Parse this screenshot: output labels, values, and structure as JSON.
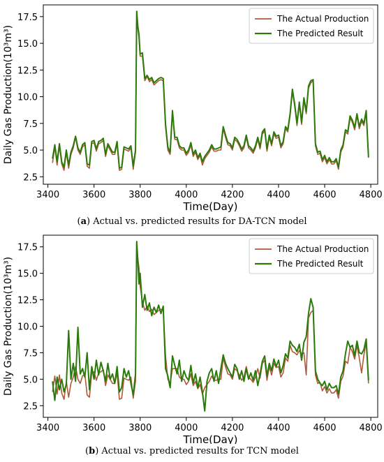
{
  "figure": {
    "panels": [
      {
        "caption_letter": "a",
        "caption_text": "Actual vs. predicted results for DA-TCN model"
      },
      {
        "caption_letter": "b",
        "caption_text": "Actual vs. predicted results for TCN model"
      }
    ]
  },
  "chart_data": [
    {
      "type": "line",
      "xlabel": "Time(Day)",
      "ylabel": "Daily Gas Production(10³m³)",
      "xlim": [
        3380,
        4830
      ],
      "ylim": [
        1.8,
        18.6
      ],
      "xticks": [
        3400,
        3600,
        3800,
        4000,
        4200,
        4400,
        4600,
        4800
      ],
      "yticks": [
        2.5,
        5.0,
        7.5,
        10.0,
        12.5,
        15.0,
        17.5
      ],
      "grid": false,
      "legend": "top-right",
      "x": [
        3420,
        3430,
        3440,
        3450,
        3460,
        3470,
        3480,
        3490,
        3500,
        3510,
        3520,
        3530,
        3540,
        3550,
        3560,
        3570,
        3580,
        3590,
        3600,
        3610,
        3620,
        3630,
        3640,
        3650,
        3660,
        3670,
        3680,
        3690,
        3700,
        3710,
        3720,
        3730,
        3740,
        3750,
        3760,
        3770,
        3780,
        3785,
        3790,
        3795,
        3800,
        3810,
        3820,
        3830,
        3840,
        3850,
        3860,
        3870,
        3880,
        3890,
        3900,
        3910,
        3920,
        3930,
        3940,
        3950,
        3960,
        3970,
        3980,
        3990,
        4000,
        4010,
        4020,
        4030,
        4040,
        4050,
        4060,
        4070,
        4080,
        4090,
        4100,
        4110,
        4120,
        4130,
        4140,
        4150,
        4160,
        4170,
        4180,
        4190,
        4200,
        4210,
        4220,
        4230,
        4240,
        4250,
        4260,
        4270,
        4280,
        4290,
        4300,
        4310,
        4320,
        4330,
        4340,
        4350,
        4360,
        4370,
        4380,
        4390,
        4400,
        4410,
        4420,
        4430,
        4440,
        4450,
        4460,
        4470,
        4480,
        4490,
        4500,
        4510,
        4520,
        4530,
        4540,
        4550,
        4560,
        4570,
        4580,
        4590,
        4600,
        4610,
        4620,
        4630,
        4640,
        4650,
        4660,
        4670,
        4680,
        4690,
        4700,
        4710,
        4720,
        4730,
        4740,
        4750,
        4760,
        4770,
        4780,
        4790
      ],
      "series": [
        {
          "name": "The Actual Production",
          "color": "#b0583a",
          "values": [
            3.8,
            5.3,
            3.6,
            5.4,
            3.7,
            3.1,
            4.8,
            3.3,
            4.6,
            5.2,
            6.2,
            5.0,
            4.6,
            5.3,
            5.5,
            3.5,
            3.3,
            5.6,
            5.7,
            4.9,
            5.6,
            5.7,
            5.9,
            4.4,
            5.4,
            5.0,
            4.6,
            4.6,
            5.6,
            3.1,
            3.2,
            5.1,
            5.0,
            4.9,
            5.2,
            3.2,
            4.8,
            18.0,
            16.4,
            15.5,
            13.8,
            13.8,
            11.5,
            11.9,
            11.4,
            11.6,
            11.1,
            11.3,
            11.5,
            11.6,
            11.5,
            7.2,
            5.0,
            4.6,
            8.5,
            6.0,
            6.0,
            5.2,
            5.0,
            5.0,
            4.5,
            4.8,
            5.5,
            4.4,
            4.8,
            4.1,
            4.5,
            3.6,
            4.2,
            4.5,
            4.8,
            5.3,
            4.9,
            4.9,
            5.0,
            5.0,
            7.0,
            6.2,
            5.5,
            5.4,
            5.0,
            6.0,
            5.8,
            5.4,
            4.9,
            5.2,
            6.2,
            5.2,
            5.0,
            4.7,
            5.2,
            6.0,
            5.1,
            6.5,
            6.8,
            4.9,
            6.2,
            5.4,
            6.5,
            6.1,
            6.2,
            5.2,
            5.6,
            7.0,
            6.7,
            8.2,
            10.5,
            9.1,
            7.3,
            9.3,
            7.4,
            9.7,
            8.4,
            10.8,
            11.3,
            11.5,
            5.4,
            4.6,
            4.7,
            3.9,
            4.3,
            3.7,
            4.1,
            3.7,
            3.7,
            4.0,
            3.2,
            4.8,
            5.3,
            6.7,
            6.5,
            8.0,
            7.6,
            6.9,
            8.2,
            7.0,
            7.7,
            7.3,
            8.5,
            4.6
          ]
        },
        {
          "name": "The Predicted Result",
          "color": "#2a7a0a",
          "values": [
            4.2,
            5.5,
            3.9,
            5.6,
            3.9,
            3.4,
            5.0,
            3.6,
            4.8,
            5.4,
            6.3,
            5.2,
            4.8,
            5.5,
            5.7,
            3.7,
            3.6,
            5.8,
            5.9,
            5.1,
            5.8,
            5.9,
            6.1,
            4.6,
            5.6,
            5.2,
            4.8,
            4.8,
            5.8,
            3.3,
            3.4,
            5.3,
            5.2,
            5.1,
            5.4,
            3.5,
            5.0,
            18.0,
            16.6,
            15.8,
            14.0,
            14.1,
            11.7,
            12.0,
            11.6,
            11.8,
            11.3,
            11.5,
            11.7,
            11.8,
            11.7,
            7.4,
            5.3,
            4.8,
            8.7,
            6.2,
            6.2,
            5.4,
            5.2,
            5.2,
            4.7,
            5.0,
            5.7,
            4.6,
            5.0,
            4.3,
            4.7,
            3.9,
            4.4,
            4.7,
            5.0,
            5.5,
            5.1,
            5.1,
            5.2,
            5.3,
            7.2,
            6.4,
            5.7,
            5.6,
            5.2,
            6.2,
            6.0,
            5.6,
            5.1,
            5.4,
            6.4,
            5.4,
            5.2,
            4.9,
            5.4,
            6.2,
            5.3,
            6.7,
            7.0,
            5.1,
            6.4,
            5.6,
            6.7,
            6.3,
            6.4,
            5.4,
            5.8,
            7.2,
            6.9,
            8.4,
            10.7,
            9.3,
            7.5,
            9.5,
            7.6,
            9.9,
            8.6,
            11.0,
            11.5,
            11.6,
            5.6,
            4.8,
            4.9,
            4.1,
            4.5,
            3.9,
            4.3,
            3.9,
            3.9,
            4.2,
            3.4,
            5.0,
            5.5,
            6.9,
            6.7,
            8.2,
            7.8,
            7.1,
            8.4,
            7.2,
            7.9,
            7.5,
            8.7,
            4.3
          ]
        }
      ]
    },
    {
      "type": "line",
      "xlabel": "Time(Day)",
      "ylabel": "Daily Gas Production(10³m³)",
      "xlim": [
        3380,
        4830
      ],
      "ylim": [
        1.4,
        18.6
      ],
      "xticks": [
        3400,
        3600,
        3800,
        4000,
        4200,
        4400,
        4600,
        4800
      ],
      "yticks": [
        2.5,
        5.0,
        7.5,
        10.0,
        12.5,
        15.0,
        17.5
      ],
      "grid": false,
      "legend": "top-right",
      "x": [
        3420,
        3430,
        3440,
        3450,
        3460,
        3470,
        3480,
        3490,
        3500,
        3510,
        3520,
        3530,
        3540,
        3550,
        3560,
        3570,
        3580,
        3590,
        3600,
        3610,
        3620,
        3630,
        3640,
        3650,
        3660,
        3670,
        3680,
        3690,
        3700,
        3710,
        3720,
        3730,
        3740,
        3750,
        3760,
        3770,
        3780,
        3785,
        3790,
        3795,
        3800,
        3810,
        3820,
        3830,
        3840,
        3850,
        3860,
        3870,
        3880,
        3890,
        3900,
        3910,
        3920,
        3930,
        3940,
        3950,
        3960,
        3970,
        3980,
        3990,
        4000,
        4010,
        4020,
        4030,
        4040,
        4050,
        4060,
        4070,
        4080,
        4090,
        4100,
        4110,
        4120,
        4130,
        4140,
        4150,
        4160,
        4170,
        4180,
        4190,
        4200,
        4210,
        4220,
        4230,
        4240,
        4250,
        4260,
        4270,
        4280,
        4290,
        4300,
        4310,
        4320,
        4330,
        4340,
        4350,
        4360,
        4370,
        4380,
        4390,
        4400,
        4410,
        4420,
        4430,
        4440,
        4450,
        4460,
        4470,
        4480,
        4490,
        4500,
        4510,
        4520,
        4530,
        4540,
        4550,
        4560,
        4570,
        4580,
        4590,
        4600,
        4610,
        4620,
        4630,
        4640,
        4650,
        4660,
        4670,
        4680,
        4690,
        4700,
        4710,
        4720,
        4730,
        4740,
        4750,
        4760,
        4770,
        4780,
        4790
      ],
      "series": [
        {
          "name": "The Actual Production",
          "color": "#b0583a",
          "values": [
            3.8,
            5.3,
            3.6,
            5.4,
            3.7,
            3.1,
            4.8,
            3.3,
            4.6,
            5.2,
            6.2,
            5.0,
            4.6,
            5.3,
            5.5,
            3.5,
            3.3,
            5.6,
            5.7,
            4.9,
            5.6,
            5.7,
            5.9,
            4.4,
            5.4,
            5.0,
            4.6,
            4.6,
            5.6,
            3.1,
            3.2,
            5.1,
            5.0,
            4.9,
            5.2,
            3.2,
            4.8,
            18.0,
            16.4,
            15.5,
            13.8,
            12.3,
            11.5,
            11.9,
            11.4,
            11.6,
            11.1,
            11.3,
            11.5,
            11.6,
            11.5,
            7.2,
            5.0,
            4.6,
            6.0,
            6.0,
            6.0,
            5.2,
            5.0,
            5.0,
            4.5,
            4.8,
            5.5,
            4.4,
            4.8,
            4.1,
            4.5,
            3.6,
            4.2,
            4.5,
            4.8,
            5.3,
            4.9,
            4.9,
            5.0,
            5.0,
            7.0,
            6.2,
            5.5,
            5.4,
            5.0,
            6.0,
            5.8,
            5.4,
            4.9,
            5.2,
            6.2,
            5.2,
            5.0,
            4.7,
            5.2,
            6.0,
            5.1,
            6.5,
            6.8,
            4.9,
            6.2,
            5.4,
            6.5,
            6.1,
            6.2,
            5.2,
            5.6,
            7.0,
            6.7,
            8.2,
            7.6,
            7.5,
            7.3,
            7.7,
            7.4,
            7.5,
            5.4,
            10.8,
            11.3,
            11.5,
            5.4,
            4.6,
            4.7,
            3.9,
            4.3,
            3.7,
            4.1,
            3.7,
            3.7,
            4.0,
            3.2,
            4.8,
            5.3,
            6.7,
            6.5,
            8.0,
            7.6,
            6.9,
            8.2,
            7.0,
            5.6,
            7.3,
            8.5,
            4.6
          ]
        },
        {
          "name": "The Predicted Result",
          "color": "#2a7a0a",
          "values": [
            4.8,
            3.0,
            5.2,
            4.0,
            5.0,
            3.8,
            4.5,
            9.6,
            5.0,
            6.5,
            4.8,
            9.9,
            5.5,
            6.0,
            5.2,
            7.5,
            4.0,
            6.2,
            5.0,
            6.8,
            5.4,
            6.6,
            5.8,
            4.8,
            6.5,
            5.0,
            5.5,
            4.6,
            6.2,
            3.8,
            4.2,
            6.0,
            5.2,
            5.8,
            4.6,
            3.5,
            5.5,
            18.0,
            16.2,
            14.0,
            15.0,
            11.8,
            13.0,
            11.5,
            12.2,
            11.0,
            11.8,
            11.3,
            12.0,
            11.2,
            11.9,
            6.0,
            5.3,
            4.2,
            7.2,
            6.3,
            5.5,
            6.8,
            4.8,
            5.8,
            5.2,
            4.9,
            6.3,
            4.6,
            5.5,
            4.2,
            5.2,
            3.8,
            2.0,
            4.8,
            5.6,
            6.0,
            4.8,
            5.8,
            4.6,
            6.0,
            7.3,
            6.5,
            6.0,
            5.6,
            5.2,
            6.4,
            6.0,
            5.0,
            5.8,
            4.8,
            6.0,
            5.0,
            5.6,
            4.9,
            5.8,
            4.4,
            5.5,
            6.7,
            7.2,
            5.3,
            6.5,
            5.8,
            6.9,
            6.2,
            6.8,
            5.6,
            6.3,
            7.4,
            7.0,
            8.6,
            8.2,
            8.0,
            7.6,
            8.3,
            6.8,
            8.5,
            9.0,
            11.2,
            12.6,
            11.8,
            5.8,
            5.0,
            4.6,
            4.4,
            4.8,
            4.0,
            4.6,
            4.2,
            4.2,
            4.4,
            3.6,
            5.2,
            5.8,
            7.4,
            8.6,
            8.0,
            8.2,
            7.2,
            8.6,
            7.5,
            7.4,
            7.8,
            8.8,
            4.9
          ]
        }
      ]
    }
  ]
}
